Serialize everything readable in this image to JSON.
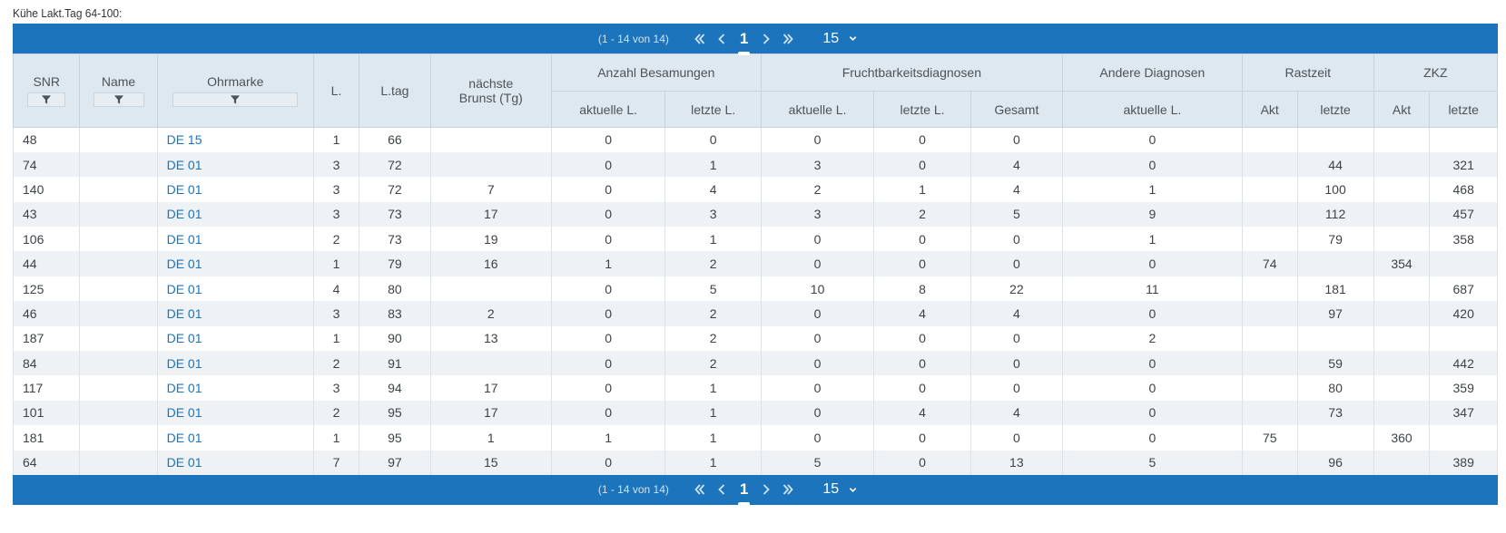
{
  "caption": "Kühe Lakt.Tag 64-100:",
  "pager": {
    "info": "(1 - 14 von 14)",
    "current_page": "1",
    "page_size": "15",
    "icons": {
      "first": "double-chevron-left-icon",
      "prev": "chevron-left-icon",
      "next": "chevron-right-icon",
      "last": "double-chevron-right-icon",
      "dropdown": "chevron-down-icon"
    }
  },
  "headers": {
    "snr": "SNR",
    "name": "Name",
    "ohrmarke": "Ohrmarke",
    "l": "L.",
    "ltag": "L.tag",
    "brunst_line1": "nächste",
    "brunst_line2": "Brunst (Tg)",
    "besamungen": "Anzahl Besamungen",
    "frucht": "Fruchtbarkeitsdiagnosen",
    "andere": "Andere Diagnosen",
    "rastzeit": "Rastzeit",
    "zkz": "ZKZ",
    "sub": {
      "bes_akt": "aktuelle L.",
      "bes_letzte": "letzte L.",
      "fr_akt": "aktuelle L.",
      "fr_letzte": "letzte L.",
      "fr_gesamt": "Gesamt",
      "and_akt": "aktuelle L.",
      "rast_akt": "Akt",
      "rast_letzte": "letzte",
      "zkz_akt": "Akt",
      "zkz_letzte": "letzte"
    }
  },
  "rows": [
    {
      "snr": "48",
      "name": "",
      "ohrmarke": "DE 15",
      "l": "1",
      "ltag": "66",
      "brunst": "",
      "bes_akt": "0",
      "bes_letzte": "0",
      "fr_akt": "0",
      "fr_letzte": "0",
      "fr_gesamt": "0",
      "and_akt": "0",
      "rast_akt": "",
      "rast_letzte": "",
      "zkz_akt": "",
      "zkz_letzte": ""
    },
    {
      "snr": "74",
      "name": "",
      "ohrmarke": "DE 01",
      "l": "3",
      "ltag": "72",
      "brunst": "",
      "bes_akt": "0",
      "bes_letzte": "1",
      "fr_akt": "3",
      "fr_letzte": "0",
      "fr_gesamt": "4",
      "and_akt": "0",
      "rast_akt": "",
      "rast_letzte": "44",
      "zkz_akt": "",
      "zkz_letzte": "321"
    },
    {
      "snr": "140",
      "name": "",
      "ohrmarke": "DE 01",
      "l": "3",
      "ltag": "72",
      "brunst": "7",
      "bes_akt": "0",
      "bes_letzte": "4",
      "fr_akt": "2",
      "fr_letzte": "1",
      "fr_gesamt": "4",
      "and_akt": "1",
      "rast_akt": "",
      "rast_letzte": "100",
      "zkz_akt": "",
      "zkz_letzte": "468"
    },
    {
      "snr": "43",
      "name": "",
      "ohrmarke": "DE 01",
      "l": "3",
      "ltag": "73",
      "brunst": "17",
      "bes_akt": "0",
      "bes_letzte": "3",
      "fr_akt": "3",
      "fr_letzte": "2",
      "fr_gesamt": "5",
      "and_akt": "9",
      "rast_akt": "",
      "rast_letzte": "112",
      "zkz_akt": "",
      "zkz_letzte": "457"
    },
    {
      "snr": "106",
      "name": "",
      "ohrmarke": "DE 01",
      "l": "2",
      "ltag": "73",
      "brunst": "19",
      "bes_akt": "0",
      "bes_letzte": "1",
      "fr_akt": "0",
      "fr_letzte": "0",
      "fr_gesamt": "0",
      "and_akt": "1",
      "rast_akt": "",
      "rast_letzte": "79",
      "zkz_akt": "",
      "zkz_letzte": "358"
    },
    {
      "snr": "44",
      "name": "",
      "ohrmarke": "DE 01",
      "l": "1",
      "ltag": "79",
      "brunst": "16",
      "bes_akt": "1",
      "bes_letzte": "2",
      "fr_akt": "0",
      "fr_letzte": "0",
      "fr_gesamt": "0",
      "and_akt": "0",
      "rast_akt": "74",
      "rast_letzte": "",
      "zkz_akt": "354",
      "zkz_letzte": ""
    },
    {
      "snr": "125",
      "name": "",
      "ohrmarke": "DE 01",
      "l": "4",
      "ltag": "80",
      "brunst": "",
      "bes_akt": "0",
      "bes_letzte": "5",
      "fr_akt": "10",
      "fr_letzte": "8",
      "fr_gesamt": "22",
      "and_akt": "11",
      "rast_akt": "",
      "rast_letzte": "181",
      "zkz_akt": "",
      "zkz_letzte": "687"
    },
    {
      "snr": "46",
      "name": "",
      "ohrmarke": "DE 01",
      "l": "3",
      "ltag": "83",
      "brunst": "2",
      "bes_akt": "0",
      "bes_letzte": "2",
      "fr_akt": "0",
      "fr_letzte": "4",
      "fr_gesamt": "4",
      "and_akt": "0",
      "rast_akt": "",
      "rast_letzte": "97",
      "zkz_akt": "",
      "zkz_letzte": "420"
    },
    {
      "snr": "187",
      "name": "",
      "ohrmarke": "DE 01",
      "l": "1",
      "ltag": "90",
      "brunst": "13",
      "bes_akt": "0",
      "bes_letzte": "2",
      "fr_akt": "0",
      "fr_letzte": "0",
      "fr_gesamt": "0",
      "and_akt": "2",
      "rast_akt": "",
      "rast_letzte": "",
      "zkz_akt": "",
      "zkz_letzte": ""
    },
    {
      "snr": "84",
      "name": "",
      "ohrmarke": "DE 01",
      "l": "2",
      "ltag": "91",
      "brunst": "",
      "bes_akt": "0",
      "bes_letzte": "2",
      "fr_akt": "0",
      "fr_letzte": "0",
      "fr_gesamt": "0",
      "and_akt": "0",
      "rast_akt": "",
      "rast_letzte": "59",
      "zkz_akt": "",
      "zkz_letzte": "442"
    },
    {
      "snr": "117",
      "name": "",
      "ohrmarke": "DE 01",
      "l": "3",
      "ltag": "94",
      "brunst": "17",
      "bes_akt": "0",
      "bes_letzte": "1",
      "fr_akt": "0",
      "fr_letzte": "0",
      "fr_gesamt": "0",
      "and_akt": "0",
      "rast_akt": "",
      "rast_letzte": "80",
      "zkz_akt": "",
      "zkz_letzte": "359"
    },
    {
      "snr": "101",
      "name": "",
      "ohrmarke": "DE 01",
      "l": "2",
      "ltag": "95",
      "brunst": "17",
      "bes_akt": "0",
      "bes_letzte": "1",
      "fr_akt": "0",
      "fr_letzte": "4",
      "fr_gesamt": "4",
      "and_akt": "0",
      "rast_akt": "",
      "rast_letzte": "73",
      "zkz_akt": "",
      "zkz_letzte": "347"
    },
    {
      "snr": "181",
      "name": "",
      "ohrmarke": "DE 01",
      "l": "1",
      "ltag": "95",
      "brunst": "1",
      "bes_akt": "1",
      "bes_letzte": "1",
      "fr_akt": "0",
      "fr_letzte": "0",
      "fr_gesamt": "0",
      "and_akt": "0",
      "rast_akt": "75",
      "rast_letzte": "",
      "zkz_akt": "360",
      "zkz_letzte": ""
    },
    {
      "snr": "64",
      "name": "",
      "ohrmarke": "DE 01",
      "l": "7",
      "ltag": "97",
      "brunst": "15",
      "bes_akt": "0",
      "bes_letzte": "1",
      "fr_akt": "5",
      "fr_letzte": "0",
      "fr_gesamt": "13",
      "and_akt": "5",
      "rast_akt": "",
      "rast_letzte": "96",
      "zkz_akt": "",
      "zkz_letzte": "389"
    }
  ]
}
